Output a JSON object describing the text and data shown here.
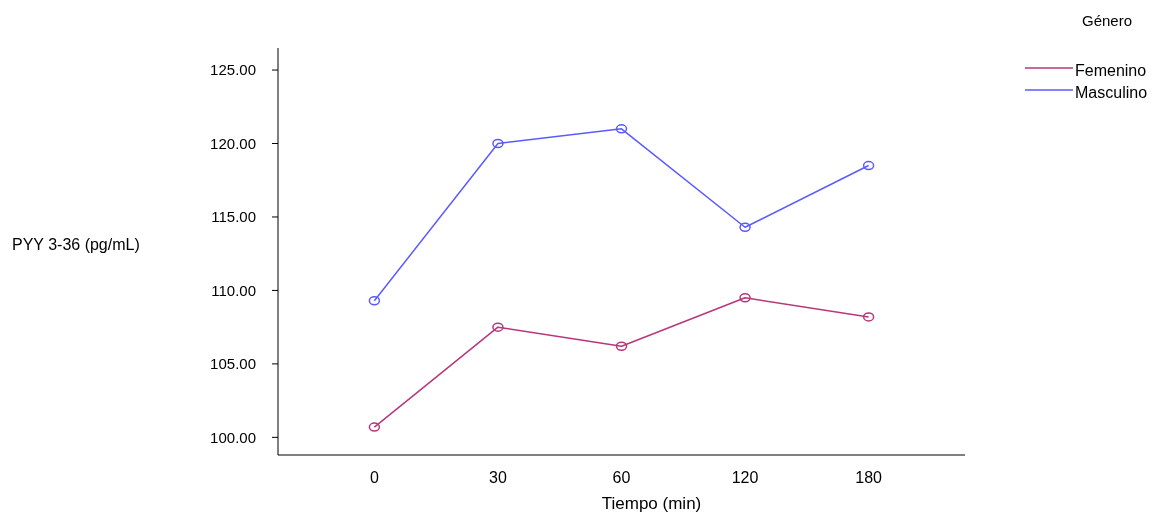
{
  "chart_data": {
    "type": "line",
    "xlabel": "Tiempo (min)",
    "ylabel": "PYY 3-36 (pg/mL)",
    "legend_title": "Género",
    "categories": [
      "0",
      "30",
      "60",
      "120",
      "180"
    ],
    "series": [
      {
        "name": "Femenino",
        "color": "#b8377a",
        "values": [
          100.7,
          107.5,
          106.2,
          109.5,
          108.2
        ]
      },
      {
        "name": "Masculino",
        "color": "#5a5aff",
        "values": [
          109.3,
          120.0,
          121.0,
          114.3,
          118.5
        ]
      }
    ],
    "ylim": [
      98.8,
      126.5
    ],
    "yticks": [
      {
        "value": 100,
        "label": "100.00"
      },
      {
        "value": 105,
        "label": "105.00"
      },
      {
        "value": 110,
        "label": "110.00"
      },
      {
        "value": 115,
        "label": "115.00"
      },
      {
        "value": 120,
        "label": "120.00"
      },
      {
        "value": 125,
        "label": "125.00"
      }
    ],
    "grid": false,
    "legend": "top right",
    "marker": "circle",
    "line_style": "solid"
  }
}
